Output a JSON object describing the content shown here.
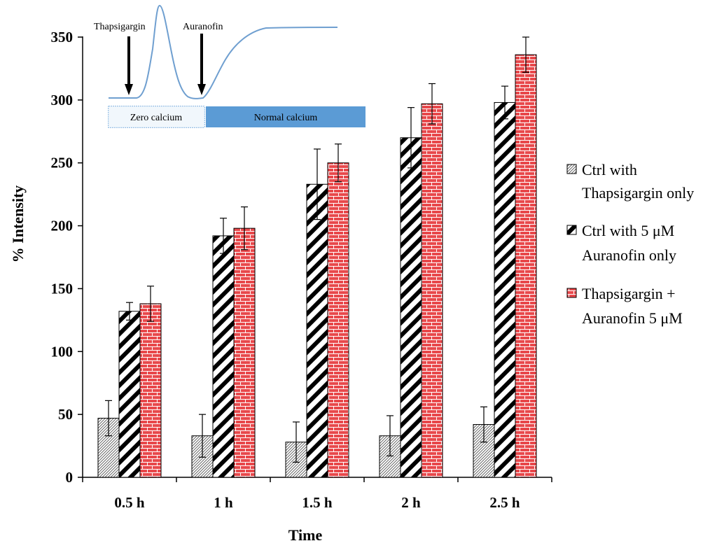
{
  "chart_data": {
    "type": "bar",
    "title": "",
    "xlabel": "Time",
    "ylabel": "% Intensity",
    "categories": [
      "0.5 h",
      "1 h",
      "1.5 h",
      "2 h",
      "2.5 h"
    ],
    "ylim": [
      0,
      350
    ],
    "yticks": [
      0,
      50,
      100,
      150,
      200,
      250,
      300,
      350
    ],
    "series": [
      {
        "name": "Ctrl with Thapsigargin only",
        "name_lines": [
          "Ctrl with",
          "Thapsigargin only"
        ],
        "pattern": "diagonal-hatch-light",
        "values": [
          47,
          33,
          28,
          33,
          42
        ],
        "errors": [
          14,
          17,
          16,
          16,
          14
        ]
      },
      {
        "name": "Ctrl with 5 μM Auranofin only",
        "name_lines": [
          "Ctrl with 5 μM",
          "Auranofin only"
        ],
        "pattern": "diagonal-stripes-bold",
        "values": [
          132,
          192,
          233,
          270,
          298
        ],
        "errors": [
          7,
          14,
          28,
          24,
          13
        ]
      },
      {
        "name": "Thapsigargin + Auranofin 5 μM",
        "name_lines": [
          "Thapsigargin +",
          "Auranofin 5 μM"
        ],
        "pattern": "red-brick",
        "color": "#e8484b",
        "values": [
          138,
          198,
          250,
          297,
          336
        ],
        "errors": [
          14,
          17,
          15,
          16,
          14
        ]
      }
    ],
    "legend_position": "right",
    "inset": {
      "arrow_labels": [
        "Thapsigargin",
        "Auranofin"
      ],
      "segments": [
        "Zero calcium",
        "Normal calcium"
      ],
      "trace_color": "#6f9fd0",
      "normal_calcium_color": "#5b9bd5"
    }
  }
}
